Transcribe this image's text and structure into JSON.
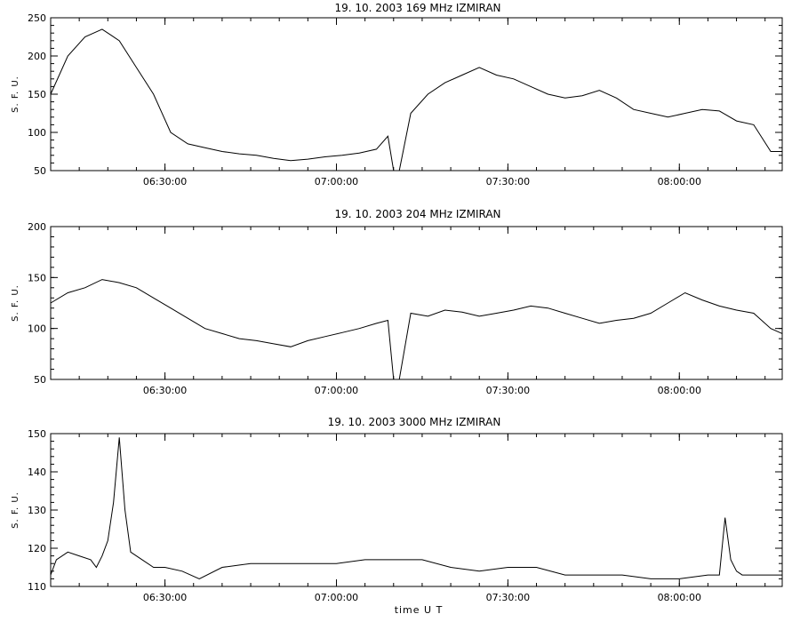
{
  "chart_data": [
    {
      "type": "line",
      "title": "19.  10.  2003    169 MHz    IZMIRAN",
      "ylabel": "S. F. U.",
      "xlim": [
        "06:10:00",
        "08:18:00"
      ],
      "ylim": [
        50,
        250
      ],
      "y_ticks": [
        50,
        100,
        150,
        200,
        250
      ],
      "x_ticks": [
        "06:30:00",
        "07:00:00",
        "07:30:00",
        "08:00:00"
      ],
      "series": [
        {
          "x": [
            "06:10:00",
            "06:13:00",
            "06:16:00",
            "06:19:00",
            "06:22:00",
            "06:25:00",
            "06:28:00",
            "06:31:00",
            "06:34:00",
            "06:37:00",
            "06:40:00",
            "06:43:00",
            "06:46:00",
            "06:49:00",
            "06:52:00",
            "06:55:00",
            "06:58:00",
            "07:01:00",
            "07:04:00",
            "07:07:00",
            "07:09:00",
            "07:10:00",
            "07:11:00",
            "07:13:00",
            "07:16:00",
            "07:19:00",
            "07:22:00",
            "07:25:00",
            "07:28:00",
            "07:31:00",
            "07:34:00",
            "07:37:00",
            "07:40:00",
            "07:43:00",
            "07:46:00",
            "07:49:00",
            "07:52:00",
            "07:55:00",
            "07:58:00",
            "08:01:00",
            "08:04:00",
            "08:07:00",
            "08:10:00",
            "08:13:00",
            "08:16:00",
            "08:18:00"
          ],
          "values": [
            150,
            200,
            225,
            235,
            220,
            185,
            150,
            100,
            85,
            80,
            75,
            72,
            70,
            66,
            63,
            65,
            68,
            70,
            73,
            78,
            95,
            50,
            50,
            125,
            150,
            165,
            175,
            185,
            175,
            170,
            160,
            150,
            145,
            148,
            155,
            145,
            130,
            125,
            120,
            125,
            130,
            128,
            115,
            110,
            75,
            75
          ]
        }
      ]
    },
    {
      "type": "line",
      "title": "19.  10.  2003    204 MHz    IZMIRAN",
      "ylabel": "S. F. U.",
      "xlim": [
        "06:10:00",
        "08:18:00"
      ],
      "ylim": [
        50,
        200
      ],
      "y_ticks": [
        50,
        100,
        150,
        200
      ],
      "x_ticks": [
        "06:30:00",
        "07:00:00",
        "07:30:00",
        "08:00:00"
      ],
      "series": [
        {
          "x": [
            "06:10:00",
            "06:13:00",
            "06:16:00",
            "06:19:00",
            "06:22:00",
            "06:25:00",
            "06:28:00",
            "06:31:00",
            "06:34:00",
            "06:37:00",
            "06:40:00",
            "06:43:00",
            "06:46:00",
            "06:49:00",
            "06:52:00",
            "06:55:00",
            "06:58:00",
            "07:01:00",
            "07:04:00",
            "07:07:00",
            "07:09:00",
            "07:10:00",
            "07:11:00",
            "07:13:00",
            "07:16:00",
            "07:19:00",
            "07:22:00",
            "07:25:00",
            "07:28:00",
            "07:31:00",
            "07:34:00",
            "07:37:00",
            "07:40:00",
            "07:43:00",
            "07:46:00",
            "07:49:00",
            "07:52:00",
            "07:55:00",
            "07:58:00",
            "08:01:00",
            "08:04:00",
            "08:07:00",
            "08:10:00",
            "08:13:00",
            "08:16:00",
            "08:18:00"
          ],
          "values": [
            125,
            135,
            140,
            148,
            145,
            140,
            130,
            120,
            110,
            100,
            95,
            90,
            88,
            85,
            82,
            88,
            92,
            96,
            100,
            105,
            108,
            50,
            50,
            115,
            112,
            118,
            116,
            112,
            115,
            118,
            122,
            120,
            115,
            110,
            105,
            108,
            110,
            115,
            125,
            135,
            128,
            122,
            118,
            115,
            100,
            95
          ]
        }
      ]
    },
    {
      "type": "line",
      "title": "19.  10.  2003    3000 MHz    IZMIRAN",
      "ylabel": "S. F. U.",
      "xlabel": "time  U T",
      "xlim": [
        "06:10:00",
        "08:18:00"
      ],
      "ylim": [
        110,
        150
      ],
      "y_ticks": [
        110,
        120,
        130,
        140,
        150
      ],
      "x_ticks": [
        "06:30:00",
        "07:00:00",
        "07:30:00",
        "08:00:00"
      ],
      "series": [
        {
          "x": [
            "06:10:00",
            "06:11:00",
            "06:13:00",
            "06:15:00",
            "06:17:00",
            "06:18:00",
            "06:19:00",
            "06:20:00",
            "06:21:00",
            "06:22:00",
            "06:23:00",
            "06:24:00",
            "06:26:00",
            "06:28:00",
            "06:30:00",
            "06:33:00",
            "06:36:00",
            "06:40:00",
            "06:45:00",
            "06:50:00",
            "06:55:00",
            "07:00:00",
            "07:05:00",
            "07:10:00",
            "07:15:00",
            "07:20:00",
            "07:25:00",
            "07:30:00",
            "07:35:00",
            "07:40:00",
            "07:45:00",
            "07:50:00",
            "07:55:00",
            "08:00:00",
            "08:05:00",
            "08:07:00",
            "08:08:00",
            "08:09:00",
            "08:10:00",
            "08:11:00",
            "08:13:00",
            "08:15:00",
            "08:18:00"
          ],
          "values": [
            113,
            117,
            119,
            118,
            117,
            115,
            118,
            122,
            132,
            149,
            130,
            119,
            117,
            115,
            115,
            114,
            112,
            115,
            116,
            116,
            116,
            116,
            117,
            117,
            117,
            115,
            114,
            115,
            115,
            113,
            113,
            113,
            112,
            112,
            113,
            113,
            128,
            117,
            114,
            113,
            113,
            113,
            113
          ]
        }
      ]
    }
  ]
}
